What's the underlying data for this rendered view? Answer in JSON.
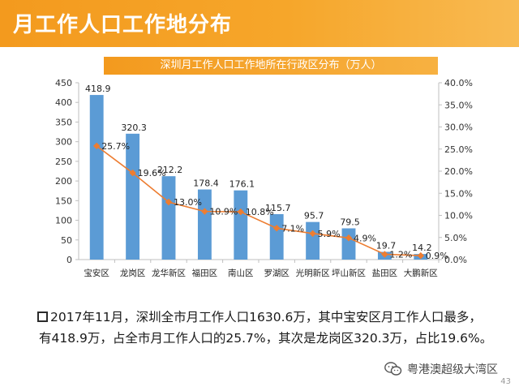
{
  "header": {
    "title": "月工作人口工作地分布"
  },
  "chart_data": {
    "type": "bar",
    "title": "深圳月工作人口工作地所在行政区分布（万人）",
    "categories": [
      "宝安区",
      "龙岗区",
      "龙华新区",
      "福田区",
      "南山区",
      "罗湖区",
      "光明新区",
      "坪山新区",
      "盐田区",
      "大鹏新区"
    ],
    "series": [
      {
        "values": [
          418.9,
          320.3,
          212.2,
          178.4,
          176.1,
          115.7,
          95.7,
          79.5,
          19.7,
          14.2
        ],
        "color": "#5b9bd5",
        "axis": "left",
        "labels": [
          "418.9",
          "320.3",
          "212.2",
          "178.4",
          "176.1",
          "115.7",
          "95.7",
          "79.5",
          "19.7",
          "14.2"
        ]
      },
      {
        "values": [
          25.7,
          19.6,
          13.0,
          10.9,
          10.8,
          7.1,
          5.9,
          4.9,
          1.2,
          0.9
        ],
        "type": "line",
        "color": "#ed7d31",
        "axis": "right",
        "labels": [
          "25.7%",
          "19.6%",
          "13.0%",
          "10.9%",
          "10.8%",
          "7.1%",
          "5.9%",
          "4.9%",
          "1.2%",
          "0.9%"
        ]
      }
    ],
    "ylim": [
      0,
      450
    ],
    "y_ticks": [
      "0",
      "50",
      "100",
      "150",
      "200",
      "250",
      "300",
      "350",
      "400",
      "450"
    ],
    "y2lim": [
      0,
      40
    ],
    "y2_ticks": [
      "0.0%",
      "5.0%",
      "10.0%",
      "15.0%",
      "20.0%",
      "25.0%",
      "30.0%",
      "35.0%",
      "40.0%"
    ],
    "grid": false
  },
  "note": {
    "text": "2017年11月，深圳全市月工作人口1630.6万，其中宝安区月工作人口最多，有418.9万，占全市月工作人口的25.7%，其次是龙岗区320.3万，占比19.6%。"
  },
  "watermark": {
    "text": "粤港澳超级大湾区",
    "icon": "wechat-icon"
  },
  "page_number": "43"
}
